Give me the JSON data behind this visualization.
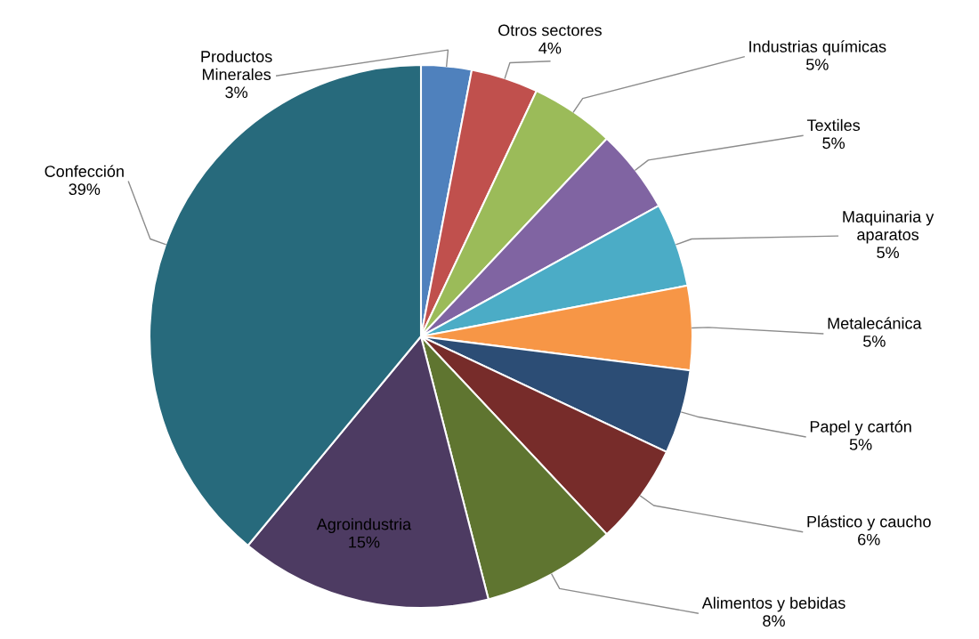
{
  "chart_data": {
    "type": "pie",
    "categories": [
      "Productos\nMinerales",
      "Otros sectores",
      "Industrias químicas",
      "Textiles",
      "Maquinaria y\naparatos",
      "Metalecánica",
      "Papel y cartón",
      "Plástico y caucho",
      "Alimentos y bebidas",
      "Agroindustria",
      "Confección"
    ],
    "values": [
      3,
      4,
      5,
      5,
      5,
      5,
      5,
      6,
      8,
      15,
      39
    ],
    "value_labels": [
      "3%",
      "4%",
      "5%",
      "5%",
      "5%",
      "5%",
      "5%",
      "6%",
      "8%",
      "15%",
      "39%"
    ],
    "colors": [
      "#4f81bd",
      "#c0504d",
      "#9bbb59",
      "#8064a2",
      "#4bacc6",
      "#f79646",
      "#2c4d75",
      "#772c2a",
      "#5f7530",
      "#4d3b62",
      "#276a7c"
    ]
  }
}
